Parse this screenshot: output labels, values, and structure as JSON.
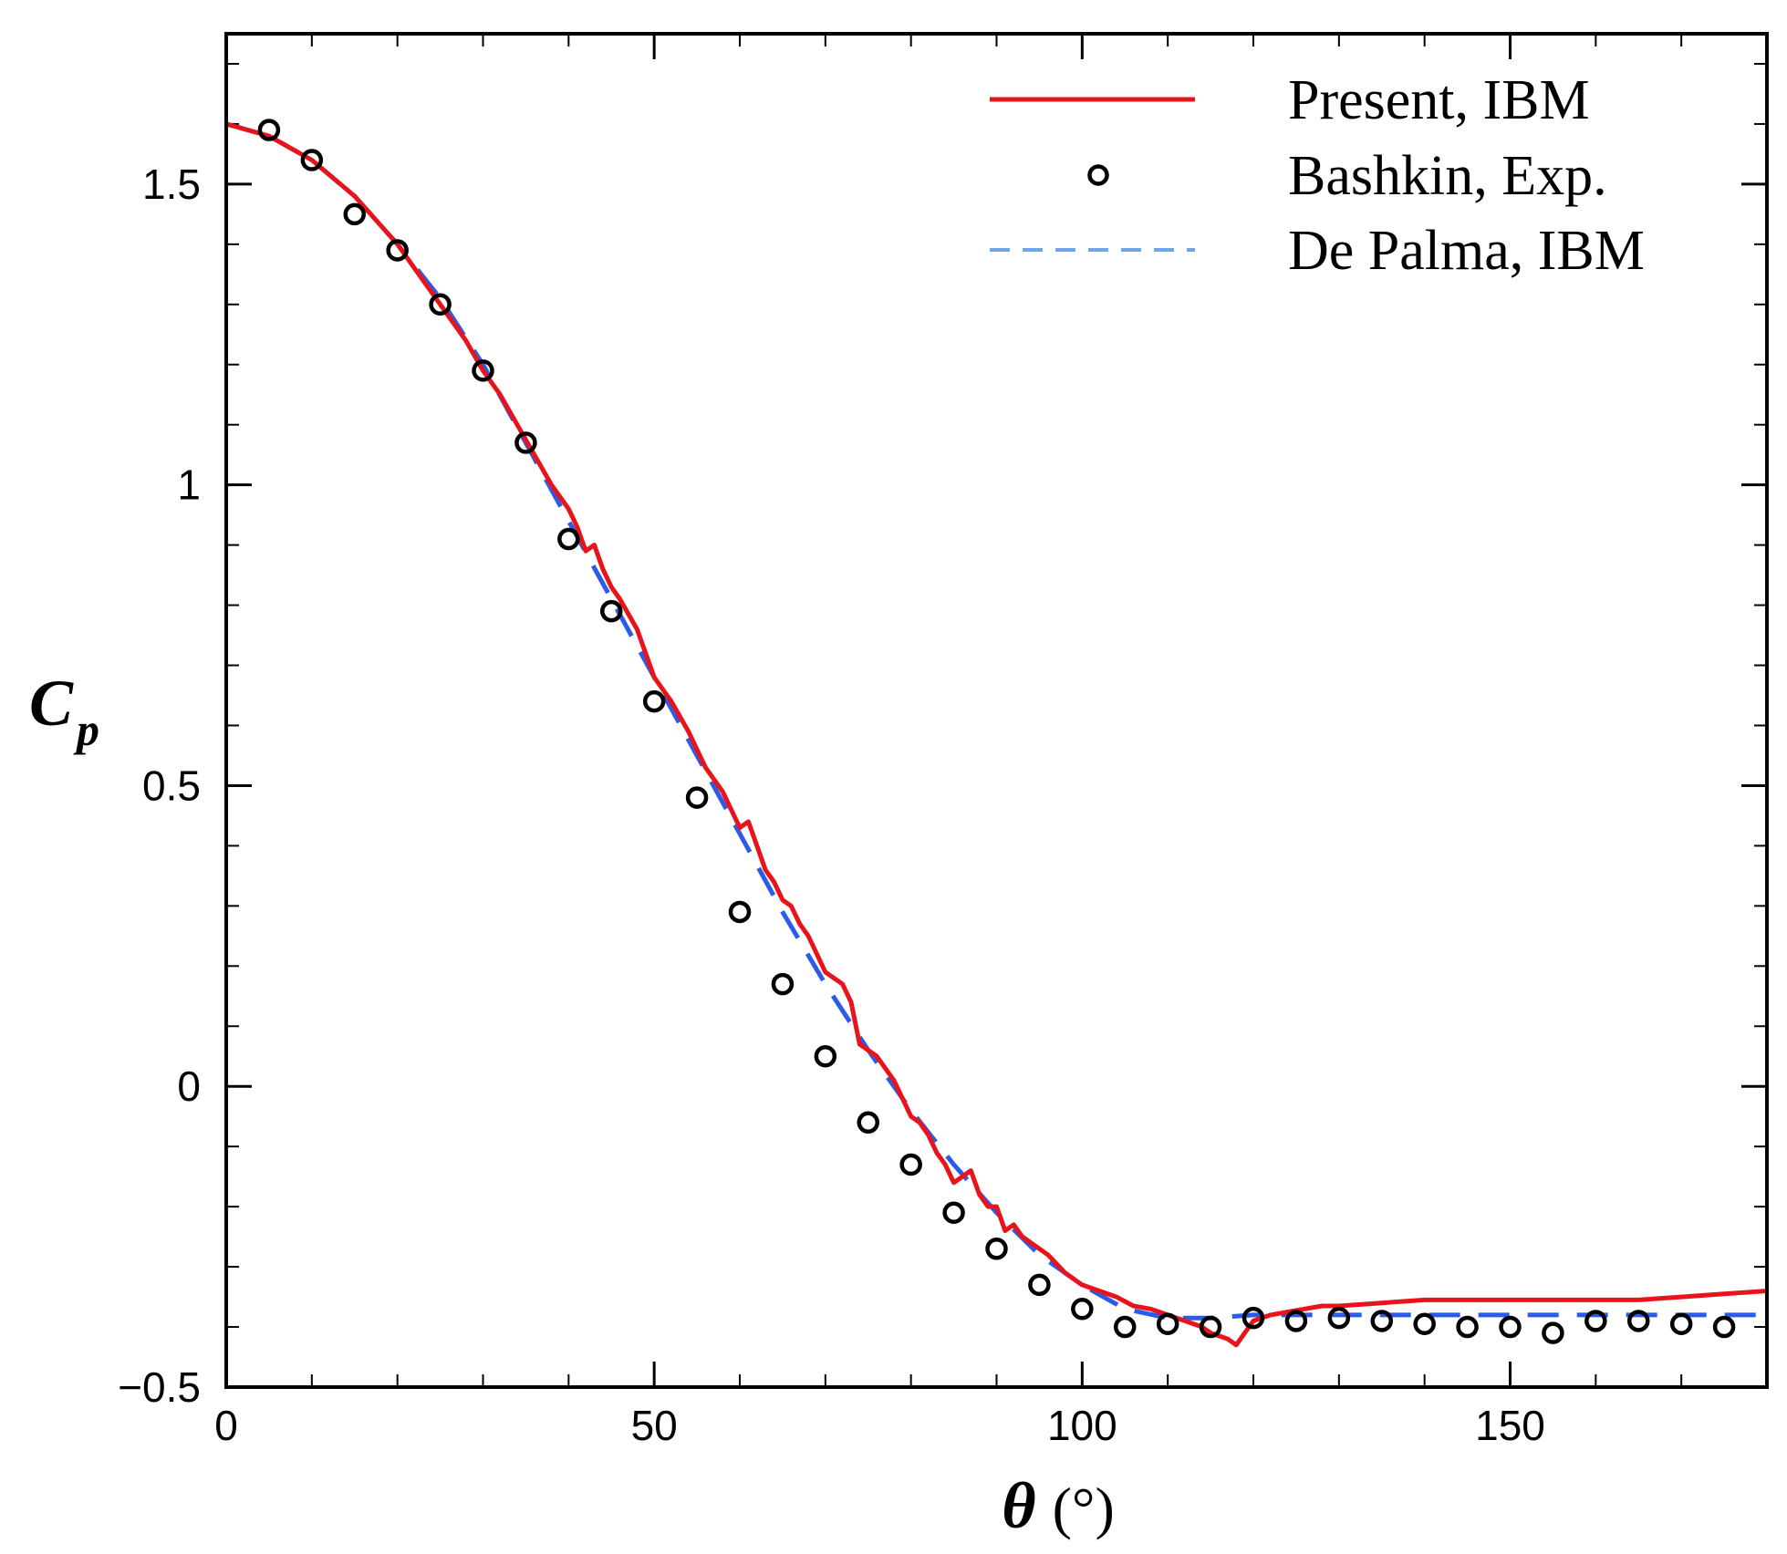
{
  "chart_data": {
    "type": "line",
    "title": "",
    "xlabel": {
      "symbol": "θ",
      "unit": "(°)"
    },
    "ylabel": {
      "symbol": "C",
      "subscript": "p"
    },
    "xlim": [
      0,
      180
    ],
    "ylim": [
      -0.5,
      1.75
    ],
    "x_ticks": [
      0,
      50,
      100,
      150
    ],
    "x_tick_labels": [
      "0",
      "50",
      "100",
      "150"
    ],
    "x_minor_step": 10,
    "y_ticks": [
      -0.5,
      0,
      0.5,
      1,
      1.5
    ],
    "y_tick_labels": [
      "−0.5",
      "0",
      "0.5",
      "1",
      "1.5"
    ],
    "y_minor_step": 0.1,
    "grid": false,
    "legend_position": "top-right",
    "series": [
      {
        "name": "Present, IBM",
        "style": "solid-line",
        "color": "#e8141c",
        "x": [
          0,
          5,
          10,
          15,
          20,
          22,
          24,
          26,
          28,
          30,
          32,
          34,
          36,
          38,
          39,
          40,
          41,
          42,
          43,
          44,
          45,
          46,
          48,
          50,
          52,
          54,
          56,
          58,
          60,
          61,
          62,
          63,
          64,
          65,
          66,
          67,
          68,
          70,
          72,
          73,
          74,
          75,
          76,
          78,
          80,
          81,
          82,
          83,
          84,
          85,
          86,
          87,
          88,
          89,
          90,
          91,
          92,
          93,
          94,
          95,
          96,
          98,
          100,
          102,
          104,
          106,
          108,
          110,
          112,
          114,
          115,
          116,
          117,
          118,
          119,
          120,
          122,
          124,
          126,
          128,
          130,
          135,
          140,
          145,
          150,
          155,
          160,
          165,
          170,
          175,
          180
        ],
        "y": [
          1.6,
          1.58,
          1.54,
          1.48,
          1.4,
          1.36,
          1.32,
          1.28,
          1.24,
          1.19,
          1.15,
          1.1,
          1.05,
          1.0,
          0.98,
          0.96,
          0.93,
          0.89,
          0.9,
          0.86,
          0.83,
          0.81,
          0.76,
          0.68,
          0.64,
          0.59,
          0.53,
          0.49,
          0.43,
          0.44,
          0.4,
          0.36,
          0.34,
          0.31,
          0.3,
          0.27,
          0.25,
          0.19,
          0.17,
          0.14,
          0.07,
          0.06,
          0.05,
          0.01,
          -0.05,
          -0.06,
          -0.08,
          -0.11,
          -0.13,
          -0.16,
          -0.15,
          -0.14,
          -0.18,
          -0.2,
          -0.2,
          -0.24,
          -0.23,
          -0.25,
          -0.26,
          -0.27,
          -0.28,
          -0.31,
          -0.33,
          -0.34,
          -0.35,
          -0.365,
          -0.37,
          -0.38,
          -0.39,
          -0.4,
          -0.41,
          -0.415,
          -0.42,
          -0.43,
          -0.41,
          -0.39,
          -0.38,
          -0.375,
          -0.37,
          -0.365,
          -0.365,
          -0.36,
          -0.355,
          -0.355,
          -0.355,
          -0.355,
          -0.355,
          -0.355,
          -0.35,
          -0.345,
          -0.34
        ]
      },
      {
        "name": "Bashkin, Exp.",
        "style": "open-circles",
        "color": "#000000",
        "x": [
          5,
          10,
          15,
          20,
          25,
          30,
          35,
          40,
          45,
          50,
          55,
          60,
          65,
          70,
          75,
          80,
          85,
          90,
          95,
          100,
          105,
          110,
          115,
          120,
          125,
          130,
          135,
          140,
          145,
          150,
          155,
          160,
          165,
          170,
          175
        ],
        "y": [
          1.59,
          1.54,
          1.45,
          1.39,
          1.3,
          1.19,
          1.07,
          0.91,
          0.79,
          0.64,
          0.48,
          0.29,
          0.17,
          0.05,
          -0.06,
          -0.13,
          -0.21,
          -0.27,
          -0.33,
          -0.37,
          -0.4,
          -0.395,
          -0.4,
          -0.385,
          -0.39,
          -0.385,
          -0.39,
          -0.395,
          -0.4,
          -0.4,
          -0.41,
          -0.39,
          -0.39,
          -0.395,
          -0.4
        ]
      },
      {
        "name": "De Palma, IBM",
        "style": "dashed-line",
        "color": "#2b5be8",
        "legend_color": "#6ea6e8",
        "x": [
          0,
          5,
          10,
          15,
          20,
          25,
          30,
          35,
          40,
          45,
          50,
          55,
          60,
          65,
          70,
          75,
          80,
          85,
          90,
          95,
          100,
          105,
          110,
          115,
          120,
          125,
          130,
          140,
          150,
          160,
          170,
          180
        ],
        "y": [
          1.6,
          1.58,
          1.54,
          1.48,
          1.4,
          1.31,
          1.2,
          1.07,
          0.94,
          0.81,
          0.68,
          0.55,
          0.42,
          0.29,
          0.17,
          0.06,
          -0.04,
          -0.13,
          -0.21,
          -0.28,
          -0.33,
          -0.37,
          -0.385,
          -0.385,
          -0.38,
          -0.38,
          -0.38,
          -0.38,
          -0.38,
          -0.38,
          -0.38,
          -0.38
        ]
      }
    ]
  }
}
